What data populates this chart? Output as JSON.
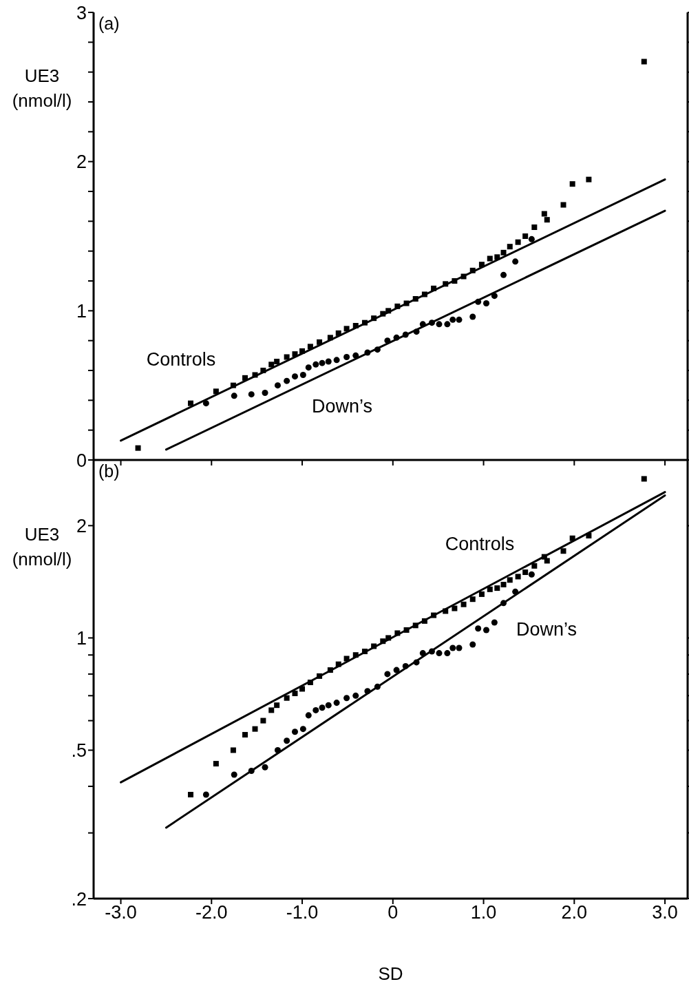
{
  "chart_data": [
    {
      "type": "scatter",
      "title": "(a)",
      "ylabel": "UE3 (nmol/l)",
      "tick_labels": "y",
      "xlim": [
        -3.3,
        3.25
      ],
      "ylim": [
        0,
        3
      ],
      "xticks": [
        -3,
        -2,
        -1,
        0,
        1,
        2,
        3
      ],
      "yticks": [
        0,
        {
          "value": 0.2,
          "label": null
        },
        {
          "value": 0.4,
          "label": null
        },
        {
          "value": 0.6,
          "label": null
        },
        {
          "value": 0.8,
          "label": null
        },
        1,
        {
          "value": 1.2,
          "label": null
        },
        {
          "value": 1.4,
          "label": null
        },
        {
          "value": 1.6,
          "label": null
        },
        {
          "value": 1.8,
          "label": null
        },
        2,
        {
          "value": 2.2,
          "label": null
        },
        {
          "value": 2.4,
          "label": null
        },
        {
          "value": 2.6,
          "label": null
        },
        {
          "value": 2.8,
          "label": null
        },
        3
      ],
      "series": [
        {
          "type": "scatter",
          "marker": "square",
          "color": "#000000",
          "x": [
            -2.81,
            -2.23,
            -1.95,
            -1.76,
            -1.63,
            -1.52,
            -1.43,
            -1.34,
            -1.28,
            -1.17,
            -1.08,
            -1.0,
            -0.91,
            -0.81,
            -0.69,
            -0.6,
            -0.51,
            -0.41,
            -0.31,
            -0.21,
            -0.11,
            -0.05,
            0.05,
            0.15,
            0.25,
            0.35,
            0.45,
            0.58,
            0.68,
            0.78,
            0.88,
            0.98,
            1.07,
            1.15,
            1.22,
            1.29,
            1.38,
            1.46,
            1.56,
            1.67,
            1.7,
            1.88,
            1.98,
            2.16,
            2.77
          ],
          "values": [
            0.08,
            0.38,
            0.46,
            0.5,
            0.55,
            0.57,
            0.6,
            0.64,
            0.66,
            0.69,
            0.71,
            0.73,
            0.76,
            0.79,
            0.82,
            0.85,
            0.88,
            0.9,
            0.92,
            0.95,
            0.98,
            1.0,
            1.03,
            1.05,
            1.08,
            1.11,
            1.15,
            1.18,
            1.2,
            1.23,
            1.27,
            1.31,
            1.35,
            1.36,
            1.39,
            1.43,
            1.46,
            1.5,
            1.56,
            1.65,
            1.61,
            1.71,
            1.85,
            1.88,
            2.67
          ]
        },
        {
          "type": "scatter",
          "marker": "circle",
          "color": "#000000",
          "x": [
            -2.06,
            -1.75,
            -1.56,
            -1.41,
            -1.27,
            -1.17,
            -1.08,
            -0.99,
            -0.93,
            -0.85,
            -0.78,
            -0.71,
            -0.62,
            -0.51,
            -0.41,
            -0.28,
            -0.17,
            -0.06,
            0.04,
            0.14,
            0.26,
            0.33,
            0.43,
            0.51,
            0.6,
            0.66,
            0.73,
            0.88,
            0.94,
            1.03,
            1.12,
            1.22,
            1.35,
            1.53
          ],
          "values": [
            0.38,
            0.43,
            0.44,
            0.45,
            0.5,
            0.53,
            0.56,
            0.57,
            0.62,
            0.64,
            0.65,
            0.66,
            0.67,
            0.69,
            0.7,
            0.72,
            0.74,
            0.8,
            0.82,
            0.84,
            0.86,
            0.91,
            0.92,
            0.91,
            0.91,
            0.94,
            0.94,
            0.96,
            1.06,
            1.05,
            1.1,
            1.24,
            1.33,
            1.48
          ]
        },
        {
          "type": "line",
          "marker": "none",
          "line_style": "solid",
          "color": "#000000",
          "x": [
            -3,
            3
          ],
          "values": [
            0.13,
            1.88
          ]
        },
        {
          "type": "line",
          "marker": "none",
          "line_style": "solid",
          "color": "#000000",
          "x": [
            -2.5,
            3
          ],
          "values": [
            0.07,
            1.67
          ]
        }
      ],
      "annotations": [
        "Controls",
        "Down’s"
      ]
    },
    {
      "type": "scatter",
      "title": "(b)",
      "ylabel": "UE3 (nmol/l)",
      "xlabel": "SD",
      "log": "y",
      "xlim": [
        -3.3,
        3.25
      ],
      "ylim": [
        0.2,
        3
      ],
      "xticks": [
        {
          "value": -3,
          "label": "-3.0"
        },
        {
          "value": -2,
          "label": "-2.0"
        },
        {
          "value": -1,
          "label": "-1.0"
        },
        0,
        {
          "value": 1,
          "label": "1.0"
        },
        {
          "value": 2,
          "label": "2.0"
        },
        {
          "value": 3,
          "label": "3.0"
        }
      ],
      "yticks": [
        {
          "value": 0.2,
          "label": ".2"
        },
        {
          "value": 0.3,
          "label": null
        },
        {
          "value": 0.4,
          "label": null
        },
        {
          "value": 0.5,
          "label": ".5"
        },
        {
          "value": 0.6,
          "label": null
        },
        {
          "value": 0.7,
          "label": null
        },
        {
          "value": 0.8,
          "label": null
        },
        {
          "value": 0.9,
          "label": null
        },
        1,
        2
      ],
      "series": [
        {
          "type": "scatter",
          "marker": "square",
          "color": "#000000",
          "x": [
            -2.23,
            -1.95,
            -1.76,
            -1.63,
            -1.52,
            -1.43,
            -1.34,
            -1.28,
            -1.17,
            -1.08,
            -1.0,
            -0.91,
            -0.81,
            -0.69,
            -0.6,
            -0.51,
            -0.41,
            -0.31,
            -0.21,
            -0.11,
            -0.05,
            0.05,
            0.15,
            0.25,
            0.35,
            0.45,
            0.58,
            0.68,
            0.78,
            0.88,
            0.98,
            1.07,
            1.15,
            1.22,
            1.29,
            1.38,
            1.46,
            1.56,
            1.67,
            1.7,
            1.88,
            1.98,
            2.16,
            2.77
          ],
          "values": [
            0.38,
            0.46,
            0.5,
            0.55,
            0.57,
            0.6,
            0.64,
            0.66,
            0.69,
            0.71,
            0.73,
            0.76,
            0.79,
            0.82,
            0.85,
            0.88,
            0.9,
            0.92,
            0.95,
            0.98,
            1.0,
            1.03,
            1.05,
            1.08,
            1.11,
            1.15,
            1.18,
            1.2,
            1.23,
            1.27,
            1.31,
            1.35,
            1.36,
            1.39,
            1.43,
            1.46,
            1.5,
            1.56,
            1.65,
            1.61,
            1.71,
            1.85,
            1.88,
            2.67
          ]
        },
        {
          "type": "scatter",
          "marker": "circle",
          "color": "#000000",
          "x": [
            -2.06,
            -1.75,
            -1.56,
            -1.41,
            -1.27,
            -1.17,
            -1.08,
            -0.99,
            -0.93,
            -0.85,
            -0.78,
            -0.71,
            -0.62,
            -0.51,
            -0.41,
            -0.28,
            -0.17,
            -0.06,
            0.04,
            0.14,
            0.26,
            0.33,
            0.43,
            0.51,
            0.6,
            0.66,
            0.73,
            0.88,
            0.94,
            1.03,
            1.12,
            1.22,
            1.35,
            1.53
          ],
          "values": [
            0.38,
            0.43,
            0.44,
            0.45,
            0.5,
            0.53,
            0.56,
            0.57,
            0.62,
            0.64,
            0.65,
            0.66,
            0.67,
            0.69,
            0.7,
            0.72,
            0.74,
            0.8,
            0.82,
            0.84,
            0.86,
            0.91,
            0.92,
            0.91,
            0.91,
            0.94,
            0.94,
            0.96,
            1.06,
            1.05,
            1.1,
            1.24,
            1.33,
            1.48
          ]
        },
        {
          "type": "line",
          "marker": "none",
          "line_style": "solid",
          "color": "#000000",
          "x": [
            -3,
            3
          ],
          "values": [
            0.41,
            2.46
          ]
        },
        {
          "type": "line",
          "marker": "none",
          "line_style": "solid",
          "color": "#000000",
          "x": [
            -2.5,
            3
          ],
          "values": [
            0.31,
            2.41
          ]
        }
      ],
      "annotations": [
        "Controls",
        "Down’s"
      ]
    }
  ]
}
